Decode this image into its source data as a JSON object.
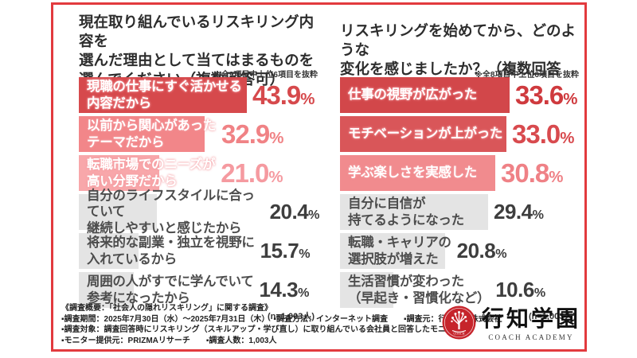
{
  "chart_data": [
    {
      "type": "bar",
      "orientation": "horizontal",
      "title": "現在取り組んでいるリスキリング内容を選んだ理由として当てはまるものを選んでください（複数回答可）",
      "title_lines": [
        "現在取り組んでいるリスキリング内容を",
        "選んだ理由として当てはまるものを",
        "選んでください（複数回答可）"
      ],
      "note": "※全9項目中上位6項目を抜粋",
      "n_label": "(n=1,003人)",
      "unit": "%",
      "xlim": [
        0,
        62
      ],
      "highlight_count": 3,
      "categories": [
        "現職の仕事にすぐ活かせる内容だから",
        "以前から関心があったテーマだから",
        "転職市場でのニーズが高い分野だから",
        "自分のライフスタイルに合っていて継続しやすいと感じたから",
        "将来的な副業・独立を視野に入れているから",
        "周囲の人がすでに学んでいて参考になったから"
      ],
      "category_lines": [
        [
          "現職の仕事にすぐ活かせる",
          "内容だから"
        ],
        [
          "以前から関心があった",
          "テーマだから"
        ],
        [
          "転職市場でのニーズが",
          "高い分野だから"
        ],
        [
          "自分のライフスタイルに合っていて",
          "継続しやすいと感じたから"
        ],
        [
          "将来的な副業・独立を視野に",
          "入れているから"
        ],
        [
          "周囲の人がすでに学んでいて",
          "参考になったから"
        ]
      ],
      "values": [
        43.9,
        32.9,
        21.0,
        20.4,
        15.7,
        14.3
      ],
      "bar_colors": [
        "#d6494c",
        "#f28689",
        "#f8a7aa",
        "#e4e4e4",
        "#e4e4e4",
        "#e4e4e4"
      ],
      "value_colors": [
        "#d6494c",
        "#f08285",
        "#f59aa0",
        "#3e3e3e",
        "#3e3e3e",
        "#3e3e3e"
      ]
    },
    {
      "type": "bar",
      "orientation": "horizontal",
      "title": "リスキリングを始めてから、どのような変化を感じましたか？（複数回答可）",
      "title_lines": [
        "リスキリングを始めてから、どのような",
        "変化を感じましたか？（複数回答可）"
      ],
      "note": "※全8項目中上位6項目を抜粋",
      "n_label": "(n=1,003人)",
      "unit": "%",
      "xlim": [
        0,
        47
      ],
      "highlight_count": 3,
      "categories": [
        "仕事の視野が広がった",
        "モチベーションが上がった",
        "学ぶ楽しさを実感した",
        "自分に自信が持てるようになった",
        "転職・キャリアの選択肢が増えた",
        "生活習慣が変わった（早起き・習慣化など）"
      ],
      "category_lines": [
        [
          "仕事の視野が広がった"
        ],
        [
          "モチベーションが上がった"
        ],
        [
          "学ぶ楽しさを実感した"
        ],
        [
          "自分に自信が",
          "持てるようになった"
        ],
        [
          "転職・キャリアの",
          "選択肢が増えた"
        ],
        [
          "生活習慣が変わった",
          "（早起き・習慣化など）"
        ]
      ],
      "values": [
        33.6,
        33.0,
        30.8,
        29.4,
        20.8,
        10.6
      ],
      "bar_colors": [
        "#d2474a",
        "#d95659",
        "#f18b8e",
        "#e4e4e4",
        "#e4e4e4",
        "#e4e4e4"
      ],
      "value_colors": [
        "#cf3a3e",
        "#d84a4e",
        "#ef8186",
        "#3e3e3e",
        "#3e3e3e",
        "#3e3e3e"
      ]
    }
  ],
  "colors": {
    "frame_border": "#e23a3e",
    "gray_bar": "#e4e4e4",
    "title_text": "#2d2d2d",
    "seal_red": "#c6242b"
  },
  "footer": {
    "lines": [
      "《調査概要：「社会人の隠れリスキリング」に関する調査》",
      "▪調査期間：2025年7月30日（水）〜2025年7月31日（木）　▪調査方法：インターネット調査　　▪調査元：行知学園株式会社",
      "▪調査対象：調査回答時にリスキリング（スキルアップ・学び直し）に取り組んでいる会社員と回答したモニター",
      "▪モニター提供元：PRIZMAリサーチ　　▪調査人数：1,003人"
    ]
  },
  "logo": {
    "name_jp": "行知学園",
    "name_en": "COACH ACADEMY",
    "seal_icon": "tree-seal-icon"
  }
}
